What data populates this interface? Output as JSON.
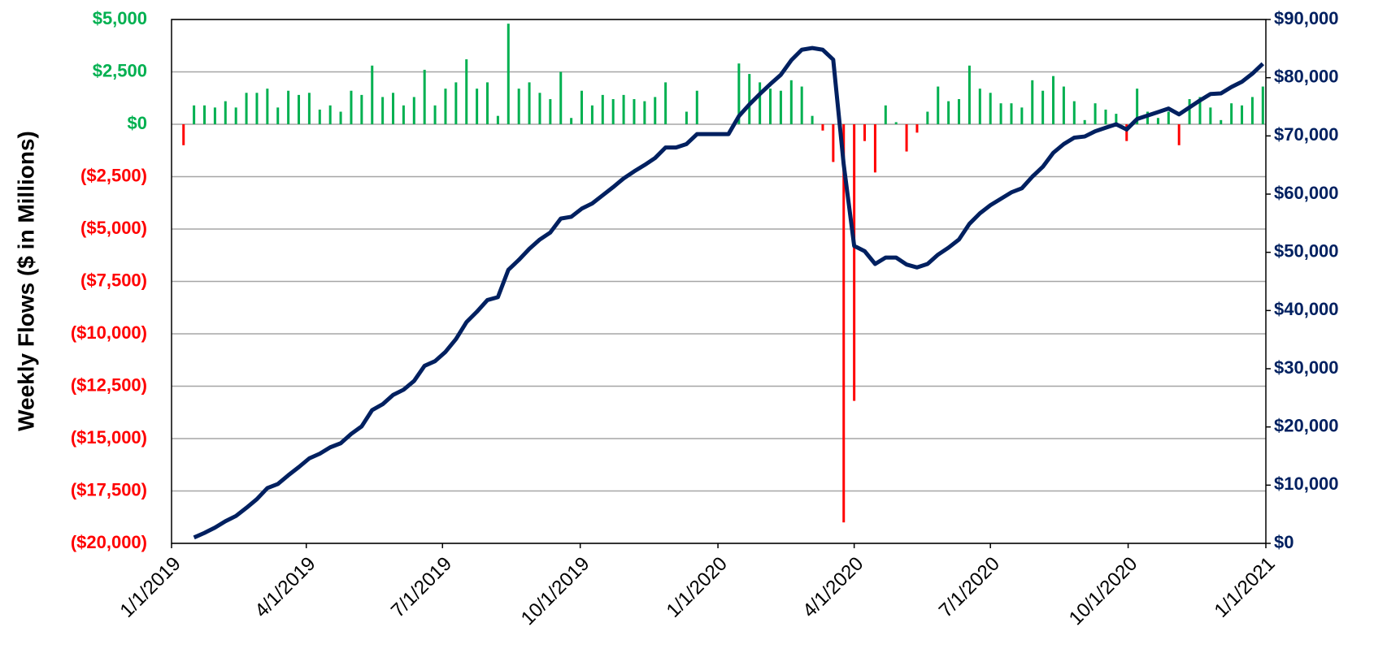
{
  "chart_data": {
    "type": "bar_line",
    "y_label": "Weekly Flows ($ in Millions)",
    "x": [
      "1/9/2019",
      "1/16/2019",
      "1/23/2019",
      "1/30/2019",
      "2/6/2019",
      "2/13/2019",
      "2/20/2019",
      "2/27/2019",
      "3/6/2019",
      "3/13/2019",
      "3/20/2019",
      "3/27/2019",
      "4/3/2019",
      "4/10/2019",
      "4/17/2019",
      "4/24/2019",
      "5/1/2019",
      "5/8/2019",
      "5/15/2019",
      "5/22/2019",
      "5/29/2019",
      "6/5/2019",
      "6/12/2019",
      "6/19/2019",
      "6/26/2019",
      "7/3/2019",
      "7/10/2019",
      "7/17/2019",
      "7/24/2019",
      "7/31/2019",
      "8/7/2019",
      "8/14/2019",
      "8/21/2019",
      "8/28/2019",
      "9/4/2019",
      "9/11/2019",
      "9/18/2019",
      "9/25/2019",
      "10/2/2019",
      "10/9/2019",
      "10/16/2019",
      "10/23/2019",
      "10/30/2019",
      "11/6/2019",
      "11/13/2019",
      "11/20/2019",
      "11/27/2019",
      "12/4/2019",
      "12/11/2019",
      "12/18/2019",
      "12/25/2019",
      "1/1/2020",
      "1/8/2020",
      "1/15/2020",
      "1/22/2020",
      "1/29/2020",
      "2/5/2020",
      "2/12/2020",
      "2/19/2020",
      "2/26/2020",
      "3/4/2020",
      "3/11/2020",
      "3/18/2020",
      "3/25/2020",
      "4/1/2020",
      "4/8/2020",
      "4/15/2020",
      "4/22/2020",
      "4/29/2020",
      "5/6/2020",
      "5/13/2020",
      "5/20/2020",
      "5/27/2020",
      "6/3/2020",
      "6/10/2020",
      "6/17/2020",
      "6/24/2020",
      "7/1/2020",
      "7/8/2020",
      "7/15/2020",
      "7/22/2020",
      "7/29/2020",
      "8/5/2020",
      "8/12/2020",
      "8/19/2020",
      "8/26/2020",
      "9/2/2020",
      "9/9/2020",
      "9/16/2020",
      "9/23/2020",
      "9/30/2020",
      "10/7/2020",
      "10/14/2020",
      "10/21/2020",
      "10/28/2020",
      "11/4/2020",
      "11/11/2020",
      "11/18/2020",
      "11/25/2020",
      "12/2/2020",
      "12/9/2020",
      "12/16/2020",
      "12/23/2020",
      "12/30/2020"
    ],
    "series": [
      {
        "type": "bar",
        "color": "#00b050",
        "negative_color": "#ff0000",
        "values": [
          -1000,
          900,
          900,
          800,
          1100,
          800,
          1500,
          1500,
          1700,
          800,
          1600,
          1400,
          1500,
          700,
          900,
          600,
          1600,
          1400,
          2800,
          1300,
          1500,
          900,
          1300,
          2600,
          900,
          1700,
          2000,
          3100,
          1700,
          2000,
          400,
          4800,
          1700,
          2000,
          1500,
          1200,
          2500,
          300,
          1600,
          900,
          1400,
          1200,
          1400,
          1200,
          1100,
          1300,
          2000,
          0,
          600,
          1600,
          0,
          0,
          0,
          2900,
          2400,
          2000,
          1700,
          1600,
          2100,
          1800,
          400,
          -300,
          -1800,
          -19000,
          -13200,
          -800,
          -2300,
          900,
          100,
          -1300,
          -400,
          600,
          1800,
          1100,
          1200,
          2800,
          1700,
          1500,
          1000,
          1000,
          800,
          2100,
          1600,
          2300,
          1800,
          1100,
          200,
          1000,
          700,
          500,
          -800,
          1700,
          600,
          300,
          600,
          -1000,
          1200,
          1300,
          800,
          200,
          1000,
          900,
          1300,
          1800
        ]
      },
      {
        "type": "line",
        "color": "#002060",
        "axis": "y2",
        "values": [
          null,
          1000,
          1800,
          2700,
          3800,
          4700,
          6100,
          7600,
          9500,
          10200,
          11700,
          13100,
          14600,
          15400,
          16500,
          17200,
          18800,
          20100,
          22900,
          23900,
          25500,
          26400,
          27900,
          30500,
          31300,
          32900,
          35100,
          38000,
          39800,
          41800,
          42300,
          47000,
          48700,
          50600,
          52200,
          53400,
          55800,
          56100,
          57500,
          58400,
          59800,
          61200,
          62700,
          63900,
          65000,
          66200,
          68000,
          68000,
          68600,
          70300,
          70300,
          70300,
          70300,
          73400,
          75400,
          77200,
          78900,
          80500,
          83000,
          84800,
          85100,
          84800,
          83100,
          65100,
          51100,
          50200,
          48000,
          49100,
          49100,
          47900,
          47400,
          48000,
          49600,
          50800,
          52200,
          54900,
          56700,
          58100,
          59200,
          60300,
          61000,
          63000,
          64700,
          67100,
          68600,
          69700,
          69900,
          70800,
          71400,
          72000,
          71100,
          72900,
          73500,
          74100,
          74700,
          73700,
          74900,
          76100,
          77200,
          77300,
          78400,
          79300,
          80700,
          82400
        ]
      }
    ],
    "xlim": [
      "1/1/2019",
      "1/1/2021"
    ],
    "xticks": [
      "1/1/2019",
      "4/1/2019",
      "7/1/2019",
      "10/1/2019",
      "1/1/2020",
      "4/1/2020",
      "7/1/2020",
      "10/1/2020",
      "1/1/2021"
    ],
    "ylim": [
      -20000,
      5000
    ],
    "yticks": [
      {
        "value": -20000,
        "label": "($20,000)"
      },
      {
        "value": -17500,
        "label": "($17,500)"
      },
      {
        "value": -15000,
        "label": "($15,000)"
      },
      {
        "value": -12500,
        "label": "($12,500)"
      },
      {
        "value": -10000,
        "label": "($10,000)"
      },
      {
        "value": -7500,
        "label": "($7,500)"
      },
      {
        "value": -5000,
        "label": "($5,000)"
      },
      {
        "value": -2500,
        "label": "($2,500)"
      },
      {
        "value": 0,
        "label": "$0"
      },
      {
        "value": 2500,
        "label": "$2,500"
      },
      {
        "value": 5000,
        "label": "$5,000"
      }
    ],
    "ytick_colors": {
      "positive": "#00b050",
      "negative": "#ff0000"
    },
    "y2lim": [
      0,
      90000
    ],
    "y2ticks": [
      {
        "value": 0,
        "label": "$0"
      },
      {
        "value": 10000,
        "label": "$10,000"
      },
      {
        "value": 20000,
        "label": "$20,000"
      },
      {
        "value": 30000,
        "label": "$30,000"
      },
      {
        "value": 40000,
        "label": "$40,000"
      },
      {
        "value": 50000,
        "label": "$50,000"
      },
      {
        "value": 60000,
        "label": "$60,000"
      },
      {
        "value": 70000,
        "label": "$70,000"
      },
      {
        "value": 80000,
        "label": "$80,000"
      },
      {
        "value": 90000,
        "label": "$90,000"
      }
    ],
    "y2tick_color": "#002060",
    "grid": true
  }
}
